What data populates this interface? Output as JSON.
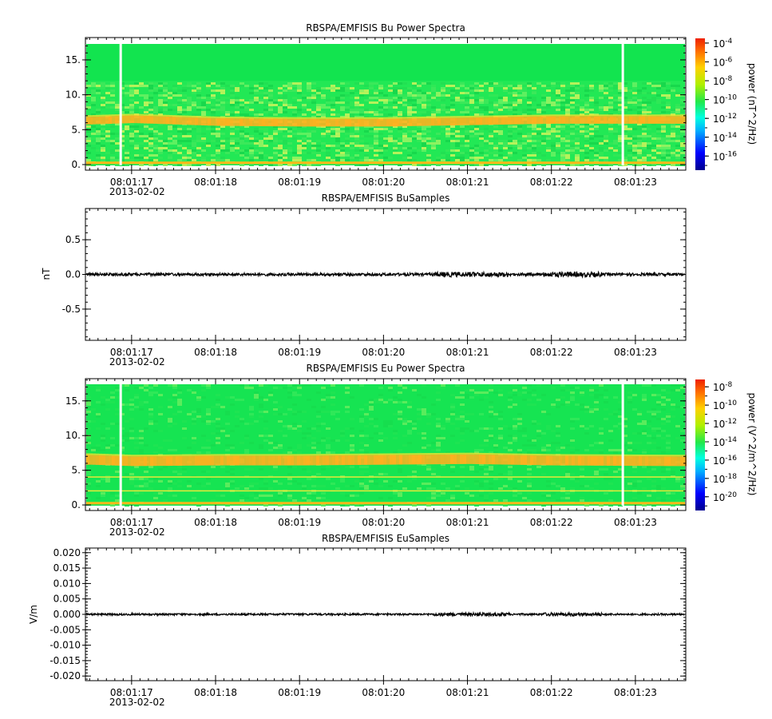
{
  "chart_data": [
    {
      "type": "heatmap",
      "title": "RBSPA/EMFISIS  Bu Power Spectra",
      "yticks": [
        "0.",
        "5.",
        "10.",
        "15."
      ],
      "ytick_values": [
        0,
        5,
        10,
        15
      ],
      "ylim": [
        -0.8,
        18.2
      ],
      "xticks": [
        "08:01:17",
        "08:01:18",
        "08:01:19",
        "08:01:20",
        "08:01:21",
        "08:01:22",
        "08:01:23"
      ],
      "xtick_seconds": [
        17,
        18,
        19,
        20,
        21,
        22,
        23
      ],
      "xlim_seconds": [
        16.45,
        23.6
      ],
      "date_label": "2013-02-02",
      "data_gaps_seconds": [
        16.87,
        22.85
      ],
      "band_center_freq": [
        6.3,
        6.5,
        6.1,
        6.0,
        6.0,
        6.2,
        6.4,
        6.4
      ],
      "band_center_seconds": [
        16.5,
        17.0,
        18.0,
        19.0,
        20.0,
        21.0,
        22.0,
        23.5
      ],
      "colorbar": {
        "label": "power (nT^2/Hz)",
        "tick_exponents": [
          "-4",
          "-6",
          "-8",
          "-10",
          "-12",
          "-14",
          "-16"
        ],
        "log_range": [
          -17.5,
          -3.5
        ]
      },
      "colors": {
        "background": "#22e855",
        "upper_region": "#12e44f",
        "band": "#ffb020"
      }
    },
    {
      "type": "line",
      "title": "RBSPA/EMFISIS  BuSamples",
      "ylabel": "nT",
      "yticks": [
        "0.5",
        "0.0",
        "-0.5"
      ],
      "ytick_values": [
        0.5,
        0.0,
        -0.5
      ],
      "ylim": [
        -0.95,
        0.95
      ],
      "xticks": [
        "08:01:17",
        "08:01:18",
        "08:01:19",
        "08:01:20",
        "08:01:21",
        "08:01:22",
        "08:01:23"
      ],
      "xtick_seconds": [
        17,
        18,
        19,
        20,
        21,
        22,
        23
      ],
      "xlim_seconds": [
        16.45,
        23.6
      ],
      "date_label": "2013-02-02",
      "trace_mean": 0.0,
      "trace_amplitude": 0.02,
      "colors": {
        "trace": "#000000"
      }
    },
    {
      "type": "heatmap",
      "title": "RBSPA/EMFISIS  Eu Power Spectra",
      "yticks": [
        "0.",
        "5.",
        "10.",
        "15."
      ],
      "ytick_values": [
        0,
        5,
        10,
        15
      ],
      "ylim": [
        -0.8,
        18.2
      ],
      "xticks": [
        "08:01:17",
        "08:01:18",
        "08:01:19",
        "08:01:20",
        "08:01:21",
        "08:01:22",
        "08:01:23"
      ],
      "xtick_seconds": [
        17,
        18,
        19,
        20,
        21,
        22,
        23
      ],
      "xlim_seconds": [
        16.45,
        23.6
      ],
      "date_label": "2013-02-02",
      "data_gaps_seconds": [
        16.87,
        22.85
      ],
      "band_center_freq": [
        6.5,
        6.3,
        6.4,
        6.4,
        6.5,
        6.6,
        6.4,
        6.3
      ],
      "band_center_seconds": [
        16.5,
        17.0,
        18.0,
        19.0,
        20.0,
        21.0,
        22.0,
        23.5
      ],
      "colorbar": {
        "label": "power (V^2/m^2/Hz)",
        "tick_exponents": [
          "-8",
          "-10",
          "-12",
          "-14",
          "-16",
          "-18",
          "-20"
        ],
        "log_range": [
          -21.5,
          -7.2
        ]
      },
      "colors": {
        "background": "#16e452",
        "band": "#ffb020"
      }
    },
    {
      "type": "line",
      "title": "RBSPA/EMFISIS  EuSamples",
      "ylabel": "V/m",
      "yticks": [
        "0.020",
        "0.015",
        "0.010",
        "0.005",
        "0.000",
        "-0.005",
        "-0.010",
        "-0.015",
        "-0.020"
      ],
      "ytick_values": [
        0.02,
        0.015,
        0.01,
        0.005,
        0.0,
        -0.005,
        -0.01,
        -0.015,
        -0.02
      ],
      "ylim": [
        -0.0215,
        0.0215
      ],
      "xticks": [
        "08:01:17",
        "08:01:18",
        "08:01:19",
        "08:01:20",
        "08:01:21",
        "08:01:22",
        "08:01:23"
      ],
      "xtick_seconds": [
        17,
        18,
        19,
        20,
        21,
        22,
        23
      ],
      "xlim_seconds": [
        16.45,
        23.6
      ],
      "date_label": "2013-02-02",
      "trace_mean": 0.0,
      "trace_amplitude": 0.0003,
      "colors": {
        "trace": "#000000"
      }
    }
  ]
}
